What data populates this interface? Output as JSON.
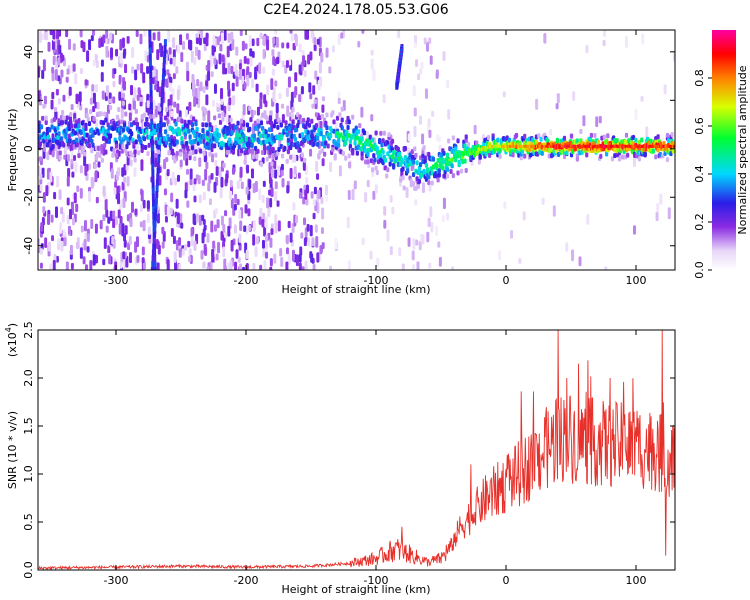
{
  "title": "C2E4.2024.178.05.53.G06",
  "chart_data": [
    {
      "type": "heatmap",
      "xlabel": "Height of straight line (km)",
      "ylabel": "Frequency (Hz)",
      "xlim": [
        -360,
        130
      ],
      "ylim": [
        -50,
        49
      ],
      "xticks": [
        -300,
        -200,
        -100,
        0,
        100
      ],
      "yticks": [
        -40,
        -20,
        0,
        20,
        40
      ],
      "colorbar": {
        "label": "Normalized spectral amplitude",
        "range": [
          0.0,
          1.0
        ],
        "ticks": [
          "0.0",
          "0.2",
          "0.4",
          "0.6",
          "0.8"
        ],
        "colormap": "white-purple-blue-cyan-green-yellow-red-magenta"
      },
      "ridge": {
        "description_points": [
          {
            "x": -350,
            "y": 6
          },
          {
            "x": -300,
            "y": 6
          },
          {
            "x": -250,
            "y": 6
          },
          {
            "x": -200,
            "y": 4
          },
          {
            "x": -150,
            "y": 6
          },
          {
            "x": -120,
            "y": 5
          },
          {
            "x": -100,
            "y": 0
          },
          {
            "x": -80,
            "y": -5
          },
          {
            "x": -65,
            "y": -9
          },
          {
            "x": -50,
            "y": -6
          },
          {
            "x": -30,
            "y": -2
          },
          {
            "x": -10,
            "y": 1
          },
          {
            "x": 0,
            "y": 1
          },
          {
            "x": 50,
            "y": 1
          },
          {
            "x": 100,
            "y": 1
          },
          {
            "x": 130,
            "y": 1
          }
        ],
        "amplitude_points": [
          {
            "x": -350,
            "a": 0.35
          },
          {
            "x": -300,
            "a": 0.35
          },
          {
            "x": -250,
            "a": 0.4
          },
          {
            "x": -200,
            "a": 0.4
          },
          {
            "x": -150,
            "a": 0.35
          },
          {
            "x": -110,
            "a": 0.5
          },
          {
            "x": -90,
            "a": 0.45
          },
          {
            "x": -60,
            "a": 0.45
          },
          {
            "x": -30,
            "a": 0.6
          },
          {
            "x": 0,
            "a": 0.75
          },
          {
            "x": 40,
            "a": 0.88
          },
          {
            "x": 80,
            "a": 0.9
          },
          {
            "x": 130,
            "a": 0.85
          }
        ]
      },
      "streaks": [
        {
          "x_top": -274,
          "x_bottom": -270,
          "y_top": 48,
          "y_bottom": -50
        },
        {
          "x_top": -262,
          "x_bottom": -272,
          "y_top": 44,
          "y_bottom": -50
        },
        {
          "x_top": -80,
          "x_bottom": -84,
          "y_top": 42,
          "y_bottom": 26
        }
      ]
    },
    {
      "type": "line",
      "xlabel": "Height of straight line (km)",
      "ylabel": "SNR (10 * v/v)",
      "y_multiplier_label": "(x10",
      "y_multiplier_exponent": "4",
      "y_multiplier_close": ")",
      "xlim": [
        -360,
        130
      ],
      "ylim": [
        0.0,
        2.5
      ],
      "xticks": [
        -300,
        -200,
        -100,
        0,
        100
      ],
      "yticks": [
        "0.0",
        "0.5",
        "1.0",
        "1.5",
        "2.0",
        "2.5"
      ],
      "color": "#e8302a",
      "series": [
        {
          "baseline": [
            {
              "x": -360,
              "y": 0.02
            },
            {
              "x": -300,
              "y": 0.03
            },
            {
              "x": -250,
              "y": 0.04
            },
            {
              "x": -200,
              "y": 0.03
            },
            {
              "x": -150,
              "y": 0.04
            },
            {
              "x": -120,
              "y": 0.07
            },
            {
              "x": -100,
              "y": 0.12
            },
            {
              "x": -85,
              "y": 0.22
            },
            {
              "x": -75,
              "y": 0.17
            },
            {
              "x": -60,
              "y": 0.08
            },
            {
              "x": -50,
              "y": 0.12
            },
            {
              "x": -42,
              "y": 0.25
            },
            {
              "x": -35,
              "y": 0.45
            },
            {
              "x": -25,
              "y": 0.6
            },
            {
              "x": -15,
              "y": 0.75
            },
            {
              "x": 0,
              "y": 0.9
            },
            {
              "x": 15,
              "y": 1.05
            },
            {
              "x": 30,
              "y": 1.25
            },
            {
              "x": 45,
              "y": 1.4
            },
            {
              "x": 60,
              "y": 1.35
            },
            {
              "x": 80,
              "y": 1.3
            },
            {
              "x": 100,
              "y": 1.3
            },
            {
              "x": 115,
              "y": 1.25
            },
            {
              "x": 125,
              "y": 1.15
            },
            {
              "x": 130,
              "y": 1.3
            }
          ],
          "spikes": [
            {
              "x": 40,
              "y": 2.5
            },
            {
              "x": 56,
              "y": 2.15
            },
            {
              "x": 120,
              "y": 2.5
            },
            {
              "x": 123,
              "y": 0.15
            },
            {
              "x": 47,
              "y": 2.0
            },
            {
              "x": -80,
              "y": 0.45
            },
            {
              "x": -27,
              "y": 1.1
            },
            {
              "x": 80,
              "y": 2.0
            }
          ]
        }
      ]
    }
  ]
}
